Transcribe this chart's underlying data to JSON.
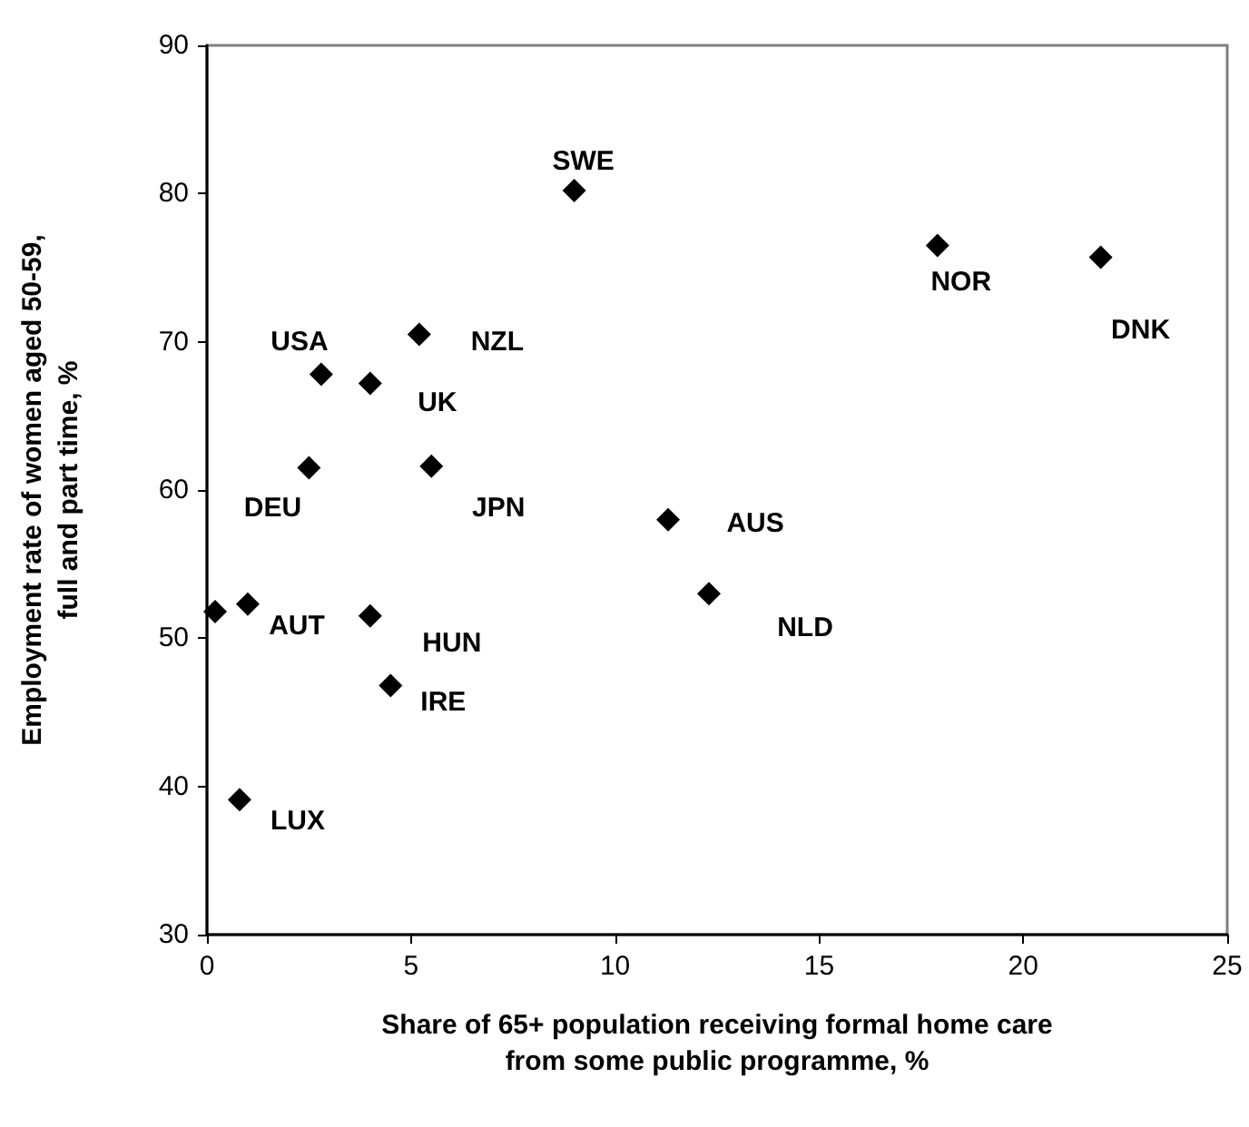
{
  "chart_data": {
    "type": "scatter",
    "xlabel": "Share of 65+ population receiving formal home care from some public programme, %",
    "ylabel": "Employment rate of women aged 50-59, full and part time, %",
    "x": [
      9.0,
      2.8,
      4.0,
      5.2,
      2.5,
      5.5,
      1.0,
      0.2,
      4.0,
      4.5,
      0.8,
      17.9,
      21.9,
      11.3,
      12.3
    ],
    "series": [
      {
        "color": "#000000",
        "values": [
          80.2,
          67.8,
          67.2,
          70.5,
          61.5,
          61.6,
          52.3,
          51.8,
          51.5,
          46.8,
          39.1,
          76.5,
          75.7,
          58.0,
          53.0
        ]
      }
    ],
    "annotations": [
      {
        "text": "SWE",
        "x": 9.0,
        "y": 80.2
      },
      {
        "text": "USA",
        "x": 2.8,
        "y": 67.8
      },
      {
        "text": "UK",
        "x": 4.0,
        "y": 67.2
      },
      {
        "text": "NZL",
        "x": 5.2,
        "y": 70.5
      },
      {
        "text": "DEU",
        "x": 2.5,
        "y": 61.5
      },
      {
        "text": "JPN",
        "x": 5.5,
        "y": 61.6
      },
      {
        "text": "AUT",
        "x": 1.0,
        "y": 52.3
      },
      {
        "text": "HUN",
        "x": 4.0,
        "y": 51.5
      },
      {
        "text": "IRE",
        "x": 4.5,
        "y": 46.8
      },
      {
        "text": "LUX",
        "x": 0.8,
        "y": 39.1
      },
      {
        "text": "NOR",
        "x": 17.9,
        "y": 76.5
      },
      {
        "text": "DNK",
        "x": 21.9,
        "y": 75.7
      },
      {
        "text": "AUS",
        "x": 11.3,
        "y": 58.0
      },
      {
        "text": "NLD",
        "x": 12.3,
        "y": 53.0
      }
    ],
    "xlim": [
      0,
      25
    ],
    "xticks": [
      0,
      5,
      10,
      15,
      20,
      25
    ],
    "ylim": [
      30,
      90
    ],
    "yticks": [
      30,
      40,
      50,
      60,
      70,
      80,
      90
    ],
    "grid": false,
    "marker": "diamond"
  }
}
